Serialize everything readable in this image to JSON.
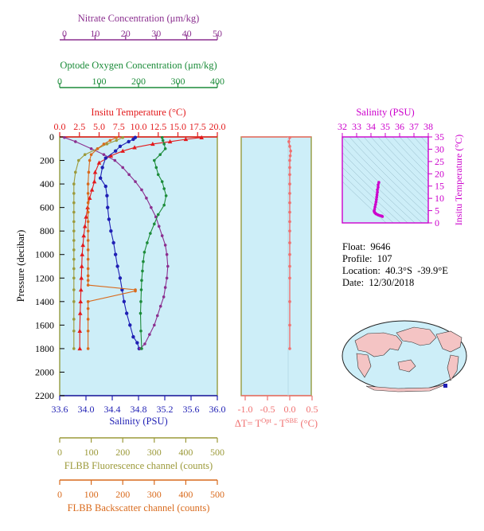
{
  "colors": {
    "nitrate": "#8b2f8f",
    "oxygen": "#1c8c3a",
    "temperature": "#e31a1c",
    "salinity": "#1f1fb4",
    "fluorescence": "#9c9a3a",
    "backscatter": "#d96a1c",
    "delta_t": "#f07070",
    "ts_salinity": "#cc00cc",
    "plot_bg": "#cdeef8"
  },
  "axes": {
    "nitrate": {
      "label": "Nitrate Concentration (μm/kg)",
      "ticks": [
        "0",
        "10",
        "20",
        "30",
        "40",
        "50"
      ]
    },
    "oxygen": {
      "label": "Optode Oxygen Concentration (μm/kg)",
      "ticks": [
        "0",
        "100",
        "200",
        "300",
        "400"
      ]
    },
    "temperature": {
      "label": "Insitu Temperature (°C)",
      "ticks": [
        "0.0",
        "2.5",
        "5.0",
        "7.5",
        "10.0",
        "12.5",
        "15.0",
        "17.5",
        "20.0"
      ]
    },
    "pressure": {
      "label": "Pressure (decibar)",
      "ticks": [
        "0",
        "200",
        "400",
        "600",
        "800",
        "1000",
        "1200",
        "1400",
        "1600",
        "1800",
        "2000",
        "2200"
      ]
    },
    "salinity": {
      "label": "Salinity (PSU)",
      "ticks": [
        "33.6",
        "34.0",
        "34.4",
        "34.8",
        "35.2",
        "35.6",
        "36.0"
      ]
    },
    "delta_t": {
      "label_prefix": "ΔT= T",
      "label_sup1": "Opt",
      "label_mid": " - T",
      "label_sup2": "SBE",
      "label_suffix": " (°C)",
      "ticks": [
        "-1.0",
        "-0.5",
        "0.0",
        "0.5"
      ]
    },
    "fluorescence": {
      "label": "FLBB Fluorescence channel (counts)",
      "ticks": [
        "0",
        "100",
        "200",
        "300",
        "400",
        "500"
      ]
    },
    "backscatter": {
      "label": "FLBB Backscatter channel (counts)",
      "ticks": [
        "0",
        "100",
        "200",
        "300",
        "400",
        "500"
      ]
    },
    "ts_salinity": {
      "label": "Salinity (PSU)",
      "ticks": [
        "32",
        "33",
        "34",
        "35",
        "36",
        "37",
        "38"
      ]
    },
    "ts_temperature": {
      "label": "Insitu Temperature (°C)",
      "ticks": [
        "0",
        "5",
        "10",
        "15",
        "20",
        "25",
        "30",
        "35"
      ]
    }
  },
  "info": {
    "float": "Float:  9646",
    "profile": "Profile:  107",
    "location": "Location:  40.3°S  -39.9°E",
    "date": "Date:  12/30/2018"
  },
  "chart_data": [
    {
      "type": "line",
      "y_axis": "Pressure (decibar)",
      "ylim": [
        2200,
        0
      ],
      "series": [
        {
          "name": "Insitu Temperature",
          "xlim": [
            0,
            20
          ],
          "x": [
            18.0,
            16.0,
            14.0,
            11.8,
            9.5,
            8.0,
            6.5,
            5.0,
            4.5,
            4.4,
            4.1,
            3.8,
            3.55,
            3.35,
            3.2,
            3.05,
            2.95,
            2.85,
            2.8,
            2.75,
            2.7,
            2.65,
            2.6,
            2.55,
            2.55
          ],
          "y": [
            5,
            20,
            40,
            60,
            90,
            120,
            160,
            220,
            300,
            380,
            450,
            520,
            600,
            680,
            760,
            840,
            920,
            1000,
            1100,
            1200,
            1300,
            1400,
            1500,
            1650,
            1800
          ]
        },
        {
          "name": "Salinity",
          "xlim": [
            33.6,
            36.0
          ],
          "x": [
            34.75,
            34.72,
            34.65,
            34.52,
            34.45,
            34.3,
            34.25,
            34.22,
            34.3,
            34.32,
            34.33,
            34.35,
            34.38,
            34.42,
            34.45,
            34.48,
            34.52,
            34.55,
            34.58,
            34.62,
            34.67,
            34.72,
            34.78,
            34.81
          ],
          "y": [
            5,
            20,
            40,
            80,
            120,
            180,
            260,
            350,
            420,
            500,
            600,
            700,
            800,
            900,
            1000,
            1100,
            1200,
            1300,
            1400,
            1500,
            1600,
            1700,
            1750,
            1800
          ]
        },
        {
          "name": "Nitrate Concentration",
          "xlim": [
            0,
            50
          ],
          "x": [
            1.5,
            5.0,
            10.0,
            14.0,
            17.5,
            20.0,
            22.0,
            24.0,
            26.0,
            27.5,
            29.0,
            30.5,
            31.5,
            32.5,
            33.5,
            34.0,
            34.3,
            34.0,
            33.5,
            33.0,
            32.0,
            31.0,
            30.0,
            28.5,
            27.0,
            25.5
          ],
          "y": [
            5,
            40,
            100,
            150,
            200,
            260,
            320,
            380,
            450,
            520,
            600,
            680,
            760,
            840,
            920,
            1000,
            1100,
            1200,
            1280,
            1360,
            1440,
            1520,
            1600,
            1680,
            1760,
            1800
          ]
        },
        {
          "name": "Optode Oxygen Concentration",
          "xlim": [
            0,
            400
          ],
          "x": [
            260,
            262,
            265,
            268,
            255,
            240,
            245,
            250,
            260,
            265,
            270,
            265,
            250,
            240,
            230,
            222,
            215,
            212,
            210,
            208,
            207,
            206,
            205,
            206,
            208
          ],
          "y": [
            5,
            30,
            60,
            100,
            150,
            200,
            260,
            320,
            380,
            440,
            500,
            580,
            660,
            740,
            820,
            900,
            980,
            1060,
            1140,
            1220,
            1300,
            1400,
            1500,
            1650,
            1800
          ]
        },
        {
          "name": "FLBB Fluorescence channel",
          "xlim": [
            0,
            500
          ],
          "x": [
            200,
            180,
            150,
            120,
            80,
            60,
            50,
            45,
            45,
            45,
            45,
            45,
            45,
            45,
            45,
            45,
            45,
            45,
            45,
            45,
            45,
            45,
            45
          ],
          "y": [
            5,
            30,
            60,
            100,
            150,
            200,
            300,
            400,
            480,
            560,
            640,
            720,
            800,
            880,
            960,
            1040,
            1120,
            1200,
            1300,
            1400,
            1550,
            1650,
            1800
          ]
        },
        {
          "name": "FLBB Backscatter channel",
          "xlim": [
            0,
            500
          ],
          "x": [
            180,
            160,
            140,
            120,
            100,
            95,
            92,
            90,
            90,
            90,
            90,
            90,
            90,
            90,
            90,
            90,
            90,
            90,
            90,
            90,
            240,
            240,
            90,
            90,
            90,
            90,
            90
          ],
          "y": [
            5,
            30,
            60,
            100,
            150,
            200,
            300,
            400,
            480,
            560,
            640,
            720,
            800,
            880,
            960,
            1040,
            1120,
            1180,
            1220,
            1260,
            1300,
            1310,
            1400,
            1460,
            1550,
            1650,
            1800
          ]
        }
      ]
    },
    {
      "type": "scatter",
      "name": "ΔT",
      "xlim": [
        -1.0,
        0.5
      ],
      "ylim": [
        2200,
        0
      ],
      "x": [
        0.0,
        -0.02,
        0.0,
        0.02,
        0.01,
        0.0,
        0.0,
        0.0,
        0.0,
        0.0,
        0.0,
        0.0,
        0.0,
        0.0,
        0.0,
        0.0,
        0.0,
        0.0,
        0.0,
        0.0,
        0.0
      ],
      "y": [
        5,
        40,
        80,
        120,
        160,
        200,
        260,
        320,
        400,
        480,
        560,
        640,
        720,
        800,
        900,
        1000,
        1100,
        1200,
        1400,
        1600,
        1800
      ]
    },
    {
      "type": "scatter",
      "name": "T-S",
      "xlabel": "Salinity (PSU)",
      "ylabel": "Insitu Temperature (°C)",
      "xlim": [
        32,
        38
      ],
      "ylim": [
        0,
        35
      ],
      "x": [
        34.55,
        34.5,
        34.5,
        34.45,
        34.45,
        34.42,
        34.4,
        34.38,
        34.35,
        34.32,
        34.28,
        34.25,
        34.22,
        34.25,
        34.3,
        34.35,
        34.45,
        34.52,
        34.6,
        34.68,
        34.75,
        34.8
      ],
      "y": [
        16.5,
        15.5,
        14.5,
        13.5,
        12.5,
        11.5,
        10.5,
        9.5,
        8.5,
        7.5,
        6.5,
        5.5,
        4.8,
        4.3,
        4.0,
        3.7,
        3.4,
        3.2,
        3.0,
        2.9,
        2.8,
        2.6
      ]
    }
  ]
}
